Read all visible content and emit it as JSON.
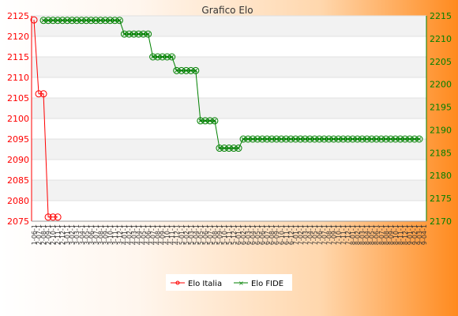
{
  "chart_data": {
    "type": "line",
    "title": "Grafico Elo",
    "x_categories": [
      "1-06-1",
      "2-07-1",
      "2-08-1",
      "2-09-1",
      "2-10-1",
      "2-11-1",
      "2-12-1",
      "3-01-1",
      "3-02-1",
      "3-03-1",
      "3-04-1",
      "3-05-1",
      "3-06-1",
      "3-07-1",
      "3-08-1",
      "3-09-1",
      "3-10-1",
      "3-11-1",
      "3-12-1",
      "4-01-1",
      "4-02-1",
      "4-03-1",
      "4-04-1",
      "4-05-1",
      "4-06-1",
      "4-07-1",
      "4-08-1",
      "4-09-1",
      "4-10-1",
      "4-11-1",
      "4-12-1",
      "5-01-1",
      "5-02-1",
      "5-03-1",
      "5-04-1",
      "5-05-1",
      "5-06-1",
      "5-07-1",
      "5-08-1",
      "5-09-1",
      "5-10-1",
      "5-11-1",
      "5-12-1",
      "6-01-1",
      "6-02-1",
      "6-03-1",
      "6-04-1",
      "6-05-1",
      "6-06-1",
      "6-07-1",
      "6-08-1",
      "6-09-1",
      "6-10-1",
      "6-11-1",
      "6-12-1",
      "7-01-1",
      "7-02-1",
      "7-03-1",
      "7-04-1",
      "7-05-1",
      "7-06-1",
      "7-07-1",
      "7-08-1",
      "7-09-1",
      "7-10-1",
      "7-11-1",
      "7-12-1",
      "8-01-1",
      "8-02-1",
      "8-03-1",
      "8-04-1",
      "8-05-1",
      "8-06-1",
      "8-07-1",
      "8-08-1",
      "8-09-1",
      "8-10-1",
      "8-11-1",
      "8-12-1",
      "9-01-1",
      "9-02-1",
      "9-03-1",
      "9-04-1"
    ],
    "y_left": {
      "min": 2075,
      "max": 2125,
      "ticks": [
        2075,
        2080,
        2085,
        2090,
        2095,
        2100,
        2105,
        2110,
        2115,
        2120,
        2125
      ],
      "color": "#ff0000"
    },
    "y_right": {
      "min": 2170,
      "max": 2215,
      "ticks": [
        2170,
        2175,
        2180,
        2185,
        2190,
        2195,
        2200,
        2205,
        2210,
        2215
      ],
      "color": "#008000"
    },
    "series": [
      {
        "name": "Elo Italia",
        "axis": "left",
        "color": "#ff0000",
        "marker": "circle",
        "points": [
          [
            0,
            2124
          ],
          [
            1,
            2106
          ],
          [
            2,
            2106
          ],
          [
            3,
            2076
          ],
          [
            4,
            2076
          ],
          [
            5,
            2076
          ]
        ]
      },
      {
        "name": "Elo FIDE",
        "axis": "right",
        "color": "#008000",
        "marker": "x",
        "segments": [
          {
            "from": 2,
            "to": 19,
            "value": 2214
          },
          {
            "from": 19,
            "to": 25,
            "value": 2211
          },
          {
            "from": 25,
            "to": 30,
            "value": 2206
          },
          {
            "from": 30,
            "to": 35,
            "value": 2203
          },
          {
            "from": 35,
            "to": 39,
            "value": 2192
          },
          {
            "from": 39,
            "to": 44,
            "value": 2186
          },
          {
            "from": 44,
            "to": 82,
            "value": 2188
          }
        ]
      }
    ],
    "fide_levels": [
      2214,
      2211,
      2206,
      2203,
      2192,
      2186,
      2188
    ],
    "legend": {
      "position": "bottom-center",
      "entries": [
        "Elo Italia",
        "Elo FIDE"
      ]
    },
    "grid": true,
    "band_colors": [
      "#f2f2f2",
      "#ffffff"
    ]
  }
}
